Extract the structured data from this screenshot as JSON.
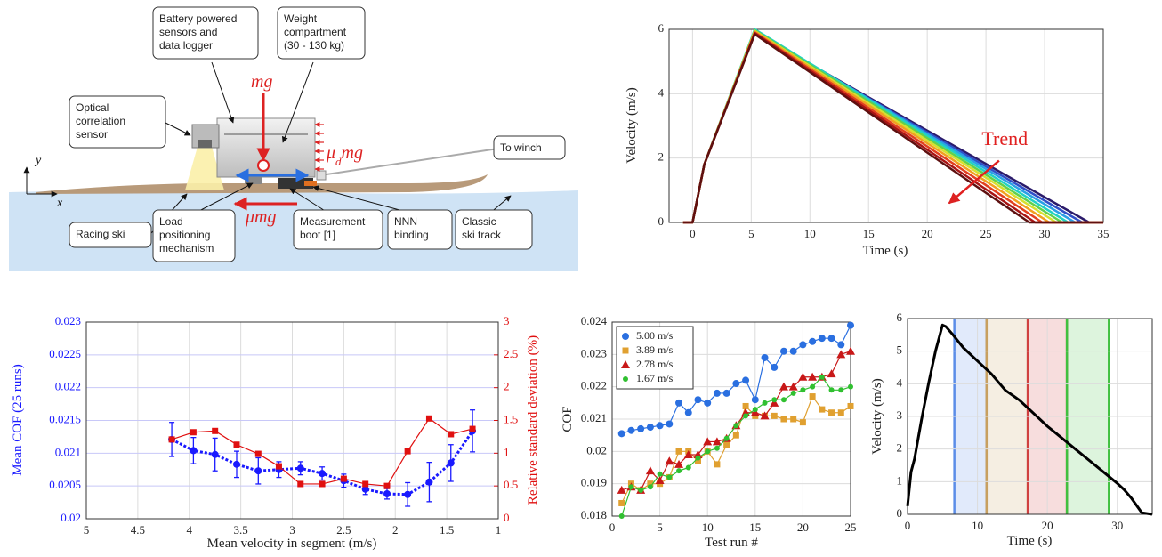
{
  "diagram": {
    "labels": [
      {
        "lines": [
          "Battery powered",
          "sensors and",
          "data logger"
        ]
      },
      {
        "lines": [
          "Weight",
          "compartment",
          "(30 - 130 kg)"
        ]
      },
      {
        "lines": [
          "Optical",
          "correlation",
          "sensor"
        ]
      },
      {
        "lines": [
          "To winch"
        ]
      },
      {
        "lines": [
          "Racing ski"
        ]
      },
      {
        "lines": [
          "Load",
          "positioning",
          "mechanism"
        ]
      },
      {
        "lines": [
          "Measurement",
          "boot [1]"
        ]
      },
      {
        "lines": [
          "NNN",
          "binding"
        ]
      },
      {
        "lines": [
          "Classic",
          "ski track"
        ]
      }
    ],
    "forces": {
      "gravity": "mg",
      "drag_base": "μ",
      "drag_sub": "d",
      "drag_rest": "mg",
      "friction": "μmg"
    },
    "axes": {
      "x": "x",
      "y": "y"
    }
  },
  "chart_data": [
    {
      "type": "line",
      "xlabel": "Time (s)",
      "ylabel": "Velocity (m/s)",
      "annotation": "Trend",
      "xlim": [
        -2,
        35
      ],
      "xticks": [
        0,
        5,
        10,
        15,
        20,
        25,
        30,
        35
      ],
      "ylim": [
        0,
        6
      ],
      "yticks": [
        0,
        2,
        4,
        6
      ],
      "grid": true,
      "series": [
        {
          "color": "#2b1b6b",
          "x": [
            -0.8,
            0,
            1,
            5.3,
            15,
            25,
            33.8,
            35
          ],
          "values": [
            0,
            0,
            1.8,
            5.9,
            3.89,
            1.82,
            0,
            0
          ]
        },
        {
          "color": "#3050c8",
          "x": [
            -0.8,
            0,
            1,
            5.3,
            15,
            25,
            33.2,
            35
          ],
          "values": [
            0,
            0,
            1.8,
            5.92,
            3.86,
            1.74,
            0,
            0
          ]
        },
        {
          "color": "#2aa0e6",
          "x": [
            -0.8,
            0,
            1,
            5.3,
            15,
            25,
            32.6,
            35
          ],
          "values": [
            0,
            0,
            1.8,
            5.95,
            3.84,
            1.66,
            0,
            0
          ]
        },
        {
          "color": "#22d2c2",
          "x": [
            -0.8,
            0,
            1,
            5.3,
            15,
            25,
            32.0,
            35
          ],
          "values": [
            0,
            0,
            1.8,
            6.0,
            3.82,
            1.57,
            0,
            0
          ]
        },
        {
          "color": "#62d04c",
          "x": [
            -0.8,
            0,
            1,
            5.3,
            15,
            25,
            31.5,
            35
          ],
          "values": [
            0,
            0,
            1.8,
            5.97,
            3.76,
            1.48,
            0,
            0
          ]
        },
        {
          "color": "#d6e030",
          "x": [
            -0.8,
            0,
            1,
            5.3,
            15,
            25,
            31.0,
            35
          ],
          "values": [
            0,
            0,
            1.8,
            5.95,
            3.7,
            1.39,
            0,
            0
          ]
        },
        {
          "color": "#f2a020",
          "x": [
            -0.8,
            0,
            1,
            5.3,
            15,
            25,
            30.4,
            35
          ],
          "values": [
            0,
            0,
            1.8,
            5.93,
            3.64,
            1.28,
            0,
            0
          ]
        },
        {
          "color": "#e24020",
          "x": [
            -0.8,
            0,
            1,
            5.3,
            15,
            25,
            29.8,
            35
          ],
          "values": [
            0,
            0,
            1.8,
            5.9,
            3.56,
            1.16,
            0,
            0
          ]
        },
        {
          "color": "#a81414",
          "x": [
            -0.8,
            0,
            1,
            5.3,
            15,
            25,
            29.2,
            35
          ],
          "values": [
            0,
            0,
            1.8,
            5.88,
            3.49,
            1.03,
            0,
            0
          ]
        },
        {
          "color": "#5e1010",
          "x": [
            -0.8,
            0,
            1,
            5.3,
            15,
            25,
            28.7,
            35
          ],
          "values": [
            0,
            0,
            1.8,
            5.85,
            3.42,
            0.92,
            0,
            0
          ]
        }
      ]
    },
    {
      "type": "line",
      "xlabel": "Mean velocity in segment (m/s)",
      "ylabel": "Mean COF (25 runs)",
      "y2label": "Relative standard deviation (%)",
      "y_color": "#1a1aff",
      "y2_color": "#e01010",
      "xlim": [
        5,
        1
      ],
      "xticks": [
        5,
        4.5,
        4,
        3.5,
        3,
        2.5,
        2,
        1.5,
        1
      ],
      "ylim": [
        0.02,
        0.023
      ],
      "yticks": [
        0.02,
        0.0205,
        0.021,
        0.0215,
        0.022,
        0.0225,
        0.023
      ],
      "y2lim": [
        0,
        3
      ],
      "y2ticks": [
        0,
        0.5,
        1,
        1.5,
        2,
        2.5,
        3
      ],
      "grid": true,
      "x": [
        4.17,
        3.96,
        3.75,
        3.54,
        3.33,
        3.13,
        2.92,
        2.71,
        2.5,
        2.29,
        2.08,
        1.88,
        1.67,
        1.46,
        1.25
      ],
      "series": [
        {
          "color": "#1a1aff",
          "marker": "circle",
          "dash": true,
          "values": [
            0.02121,
            0.02104,
            0.02098,
            0.02083,
            0.02073,
            0.02075,
            0.02077,
            0.02069,
            0.02058,
            0.02045,
            0.02038,
            0.02037,
            0.02056,
            0.02085,
            0.02134
          ],
          "errors": [
            0.00026,
            0.0002,
            0.00025,
            0.0002,
            0.0002,
            0.00012,
            0.0001,
            0.0001,
            0.0001,
            8e-05,
            8e-05,
            0.00018,
            0.0003,
            0.00028,
            0.00032
          ]
        },
        {
          "color": "#e01010",
          "marker": "square",
          "axis": "y2",
          "values": [
            1.21,
            1.32,
            1.34,
            1.13,
            0.99,
            0.8,
            0.53,
            0.53,
            0.61,
            0.53,
            0.5,
            1.03,
            1.53,
            1.29,
            1.37
          ]
        }
      ]
    },
    {
      "type": "line",
      "xlabel": "Test run #",
      "ylabel": "COF",
      "xlim": [
        0,
        25
      ],
      "xticks": [
        0,
        5,
        10,
        15,
        20,
        25
      ],
      "ylim": [
        0.018,
        0.024
      ],
      "yticks": [
        0.018,
        0.019,
        0.02,
        0.021,
        0.022,
        0.023,
        0.024
      ],
      "grid": true,
      "legend": "upper left",
      "x": [
        1,
        2,
        3,
        4,
        5,
        6,
        7,
        8,
        9,
        10,
        11,
        12,
        13,
        14,
        15,
        16,
        17,
        18,
        19,
        20,
        21,
        22,
        23,
        24,
        25
      ],
      "series": [
        {
          "name": "5.00 m/s",
          "color": "#2a6fe0",
          "marker": "circle",
          "values": [
            0.02055,
            0.02065,
            0.0207,
            0.02075,
            0.0208,
            0.02085,
            0.0215,
            0.0212,
            0.0216,
            0.0215,
            0.0218,
            0.0218,
            0.0221,
            0.0222,
            0.0216,
            0.0229,
            0.0226,
            0.0231,
            0.0231,
            0.0233,
            0.0234,
            0.0235,
            0.0235,
            0.0233,
            0.0239
          ]
        },
        {
          "name": "3.89 m/s",
          "color": "#e0a030",
          "marker": "square",
          "values": [
            0.0184,
            0.019,
            0.0188,
            0.019,
            0.019,
            0.0192,
            0.02,
            0.02,
            0.0197,
            0.02,
            0.0196,
            0.0202,
            0.0205,
            0.0214,
            0.0211,
            0.0211,
            0.0211,
            0.021,
            0.021,
            0.0209,
            0.0217,
            0.0213,
            0.0212,
            0.0212,
            0.0214
          ]
        },
        {
          "name": "2.78 m/s",
          "color": "#c81818",
          "marker": "triangle",
          "values": [
            0.0188,
            0.0189,
            0.0188,
            0.0194,
            0.0191,
            0.0197,
            0.0196,
            0.0199,
            0.0199,
            0.0203,
            0.0203,
            0.0204,
            0.0208,
            0.0212,
            0.0212,
            0.0211,
            0.0215,
            0.022,
            0.022,
            0.0223,
            0.0223,
            0.0223,
            0.0224,
            0.023,
            0.0231
          ]
        },
        {
          "name": "1.67 m/s",
          "color": "#30c030",
          "marker": "dot",
          "values": [
            0.018,
            0.0189,
            0.0188,
            0.0189,
            0.0193,
            0.0192,
            0.0194,
            0.0195,
            0.0198,
            0.02,
            0.0201,
            0.0204,
            0.0208,
            0.0211,
            0.0213,
            0.0215,
            0.0216,
            0.0216,
            0.0218,
            0.0219,
            0.022,
            0.0223,
            0.0219,
            0.0219,
            0.022
          ]
        }
      ]
    },
    {
      "type": "line",
      "xlabel": "Time (s)",
      "ylabel": "Velocity (m/s)",
      "xlim": [
        0,
        35
      ],
      "xticks": [
        0,
        10,
        20,
        30
      ],
      "ylim": [
        0,
        6
      ],
      "yticks": [
        0,
        1,
        2,
        3,
        4,
        5,
        6
      ],
      "grid": true,
      "bands": [
        {
          "start": 6.7,
          "end": 11.3,
          "color": "#5b8de8"
        },
        {
          "start": 11.3,
          "end": 17.2,
          "color": "#c8a060"
        },
        {
          "start": 17.2,
          "end": 22.8,
          "color": "#d04040"
        },
        {
          "start": 22.8,
          "end": 28.8,
          "color": "#40c040"
        }
      ],
      "x": [
        0,
        0.5,
        1,
        2,
        3,
        4,
        5,
        5.5,
        6.5,
        8,
        10,
        12,
        14,
        16,
        18,
        20,
        22,
        24,
        26,
        28,
        30,
        31,
        32,
        33,
        33.5,
        35
      ],
      "series": [
        {
          "color": "#000000",
          "width": 3,
          "values": [
            0.25,
            1.3,
            1.7,
            2.9,
            4.0,
            5.0,
            5.8,
            5.75,
            5.5,
            5.1,
            4.7,
            4.3,
            3.8,
            3.5,
            3.1,
            2.7,
            2.35,
            2.0,
            1.65,
            1.3,
            0.95,
            0.75,
            0.5,
            0.2,
            0.05,
            0
          ]
        }
      ]
    }
  ]
}
